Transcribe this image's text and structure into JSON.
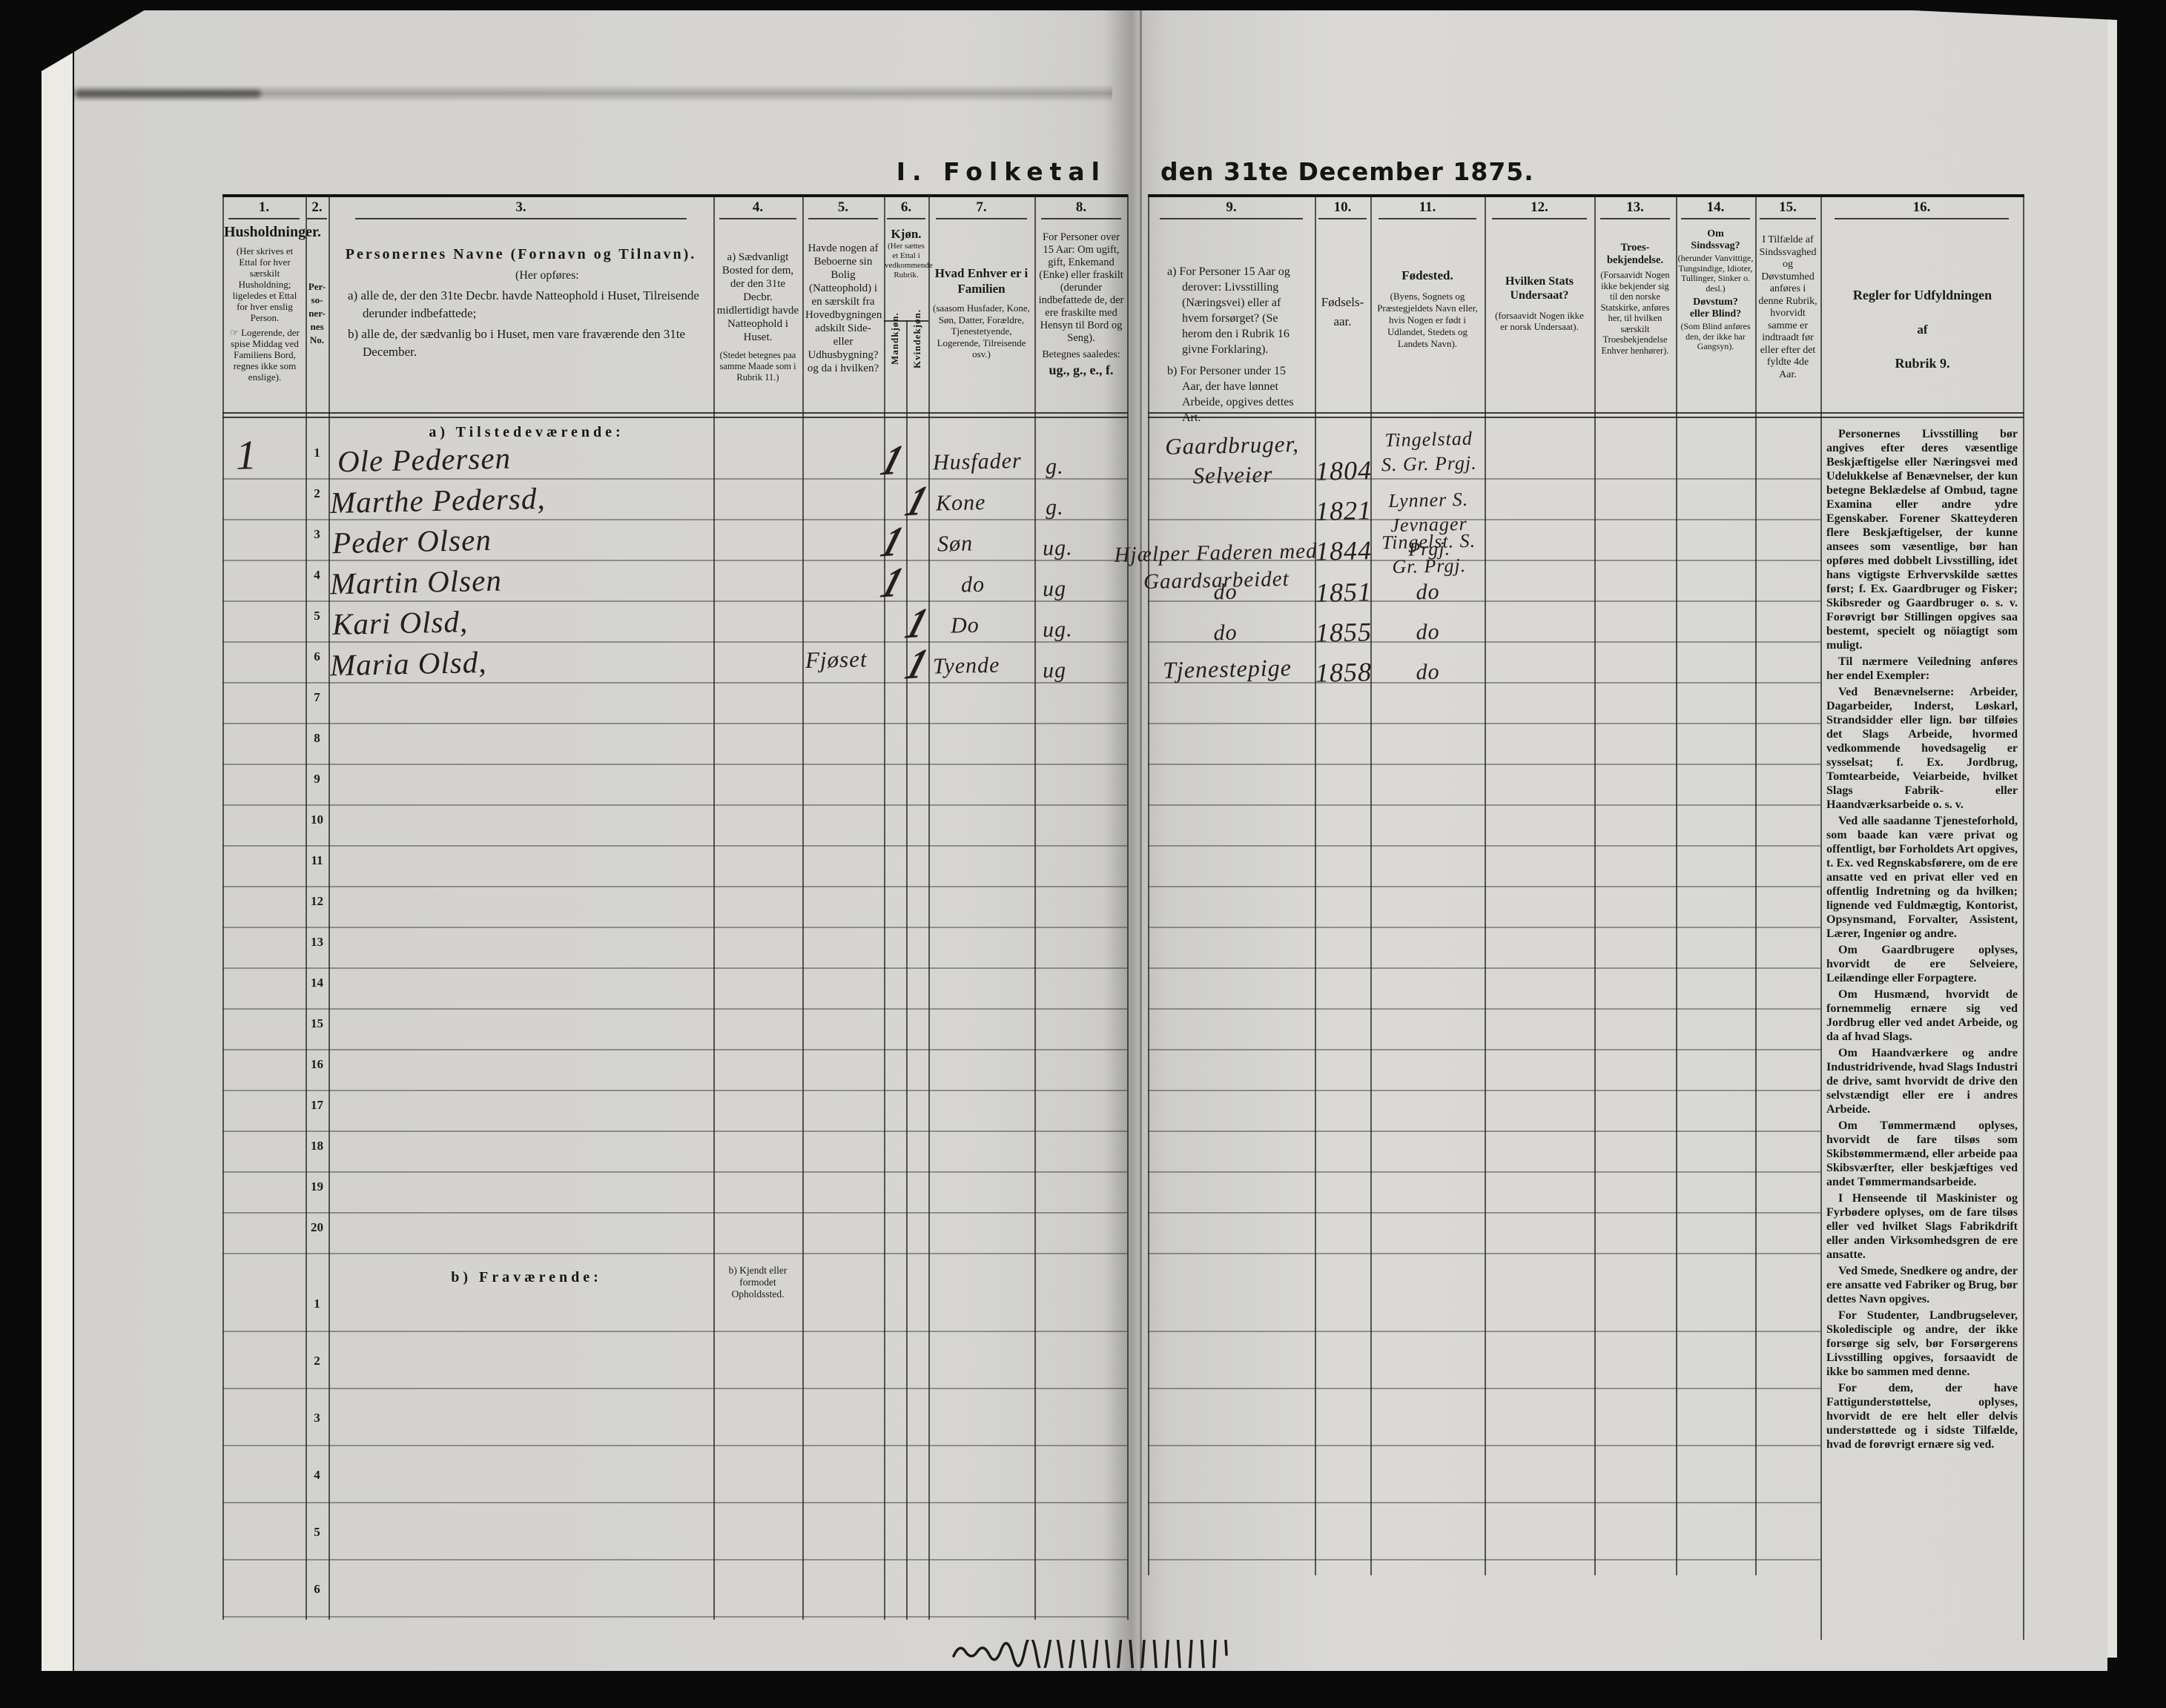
{
  "header": {
    "title_left": "I. Folketal",
    "title_right": "den 31te December 1875."
  },
  "col_numbers": [
    "1.",
    "2.",
    "3.",
    "4.",
    "5.",
    "6.",
    "7.",
    "8.",
    "9.",
    "10.",
    "11.",
    "12.",
    "13.",
    "14.",
    "15.",
    "16."
  ],
  "columns": {
    "c1": {
      "title": "Husholdninger.",
      "note1": "(Her skrives et Ettal for hver særskilt Husholdning; ligeledes et Ettal for hver enslig Person.",
      "note2": "☞ Logerende, der spise Middag ved Familiens Bord, regnes ikke som enslige)."
    },
    "c2": {
      "title": "Per-\nso-\nner-\nnes\nNo."
    },
    "c3": {
      "title": "Personernes Navne (Fornavn og Tilnavn).",
      "sub": "(Her opføres:",
      "a": "a) alle de, der den 31te Decbr. havde Natteophold i Huset, Tilreisende derunder indbefattede;",
      "b": "b) alle de, der sædvanlig bo i Huset, men vare fraværende den 31te December."
    },
    "c4": {
      "a": "a) Sædvanligt Bosted for dem, der den 31te Decbr. midlertidigt havde Natteophold i Huset.",
      "note": "(Stedet betegnes paa samme Maade som i Rubrik 11.)",
      "b": "b) Kjendt eller\nformodet\nOpholdssted."
    },
    "c5": {
      "text": "Havde nogen af Beboerne sin Bolig (Natteophold) i en særskilt fra Hovedbygningen adskilt Side- eller Udhusbygning? og da i hvilken?"
    },
    "c6": {
      "title": "Kjøn.",
      "note": "(Her sættes et Ettal i vedkommende Rubrik.",
      "male": "Mandkjøn.",
      "female": "Kvindekjøn."
    },
    "c7": {
      "title": "Hvad Enhver er i Familien",
      "note": "(saasom Husfader, Kone, Søn, Datter, Forældre, Tjenestetyende, Logerende, Tilreisende osv.)"
    },
    "c8": {
      "text": "For Personer over 15 Aar: Om ugift, gift, Enkemand (Enke) eller fraskilt (derunder indbefattede de, der ere fraskilte med Hensyn til Bord og Seng).",
      "note": "Betegnes saaledes:",
      "codes": "ug., g., e., f."
    },
    "c9": {
      "a": "a) For Personer 15 Aar og derover: Livsstilling (Næringsvei) eller af hvem forsørget? (Se herom den i Rubrik 16 givne Forklaring).",
      "b": "b) For Personer under 15 Aar, der have lønnet Arbeide, opgives dettes Art."
    },
    "c10": {
      "title": "Fødsels-\naar."
    },
    "c11": {
      "title": "Fødested.",
      "note": "(Byens, Sognets og Præstegjeldets Navn eller, hvis Nogen er født i Udlandet, Stedets og Landets Navn)."
    },
    "c12": {
      "title": "Hvilken Stats Undersaat?",
      "note": "(forsaavidt Nogen ikke er norsk Undersaat)."
    },
    "c13": {
      "title": "Troes-\nbekjendelse.",
      "note": "(Forsaavidt Nogen ikke bekjender sig til den norske Statskirke, anføres her, til hvilken særskilt Troesbekjendelse Enhver henhører)."
    },
    "c14": {
      "title1": "Om\nSindssvag?",
      "note1": "(herunder Vanvittige, Tungsindige, Idioter, Tullinger, Sinker o. desl.)",
      "title2": "Døvstum?\neller Blind?",
      "note2": "(Som Blind anføres den, der ikke har Gangsyn)."
    },
    "c15": {
      "text": "I Tilfælde af Sindssvaghed og Døvstumhed anføres i denne Rubrik, hvorvidt samme er indtraadt før eller efter det fyldte 4de Aar."
    },
    "c16": {
      "line1": "Regler for Udfyldningen",
      "line2": "af",
      "line3": "Rubrik 9."
    }
  },
  "sections": {
    "present": "a) Tilstedeværende:",
    "absent": "b) Fraværende:"
  },
  "rows": {
    "a_numbers": [
      "1",
      "2",
      "3",
      "4",
      "5",
      "6",
      "7",
      "8",
      "9",
      "10",
      "11",
      "12",
      "13",
      "14",
      "15",
      "16",
      "17",
      "18",
      "19",
      "20"
    ],
    "b_numbers": [
      "1",
      "2",
      "3",
      "4",
      "5",
      "6"
    ]
  },
  "entries": [
    {
      "household": "1",
      "no": "1",
      "name": "Ole Pedersen",
      "male": "1",
      "family": "Husfader",
      "status": "g.",
      "occupation": "Gaardbruger,\nSelveier",
      "birth_year": "1804",
      "birthplace": "Tingelstad\nS. Gr. Prgj."
    },
    {
      "no": "2",
      "name": "Marthe Pedersd,",
      "female": "1",
      "family": "Kone",
      "status": "g.",
      "birth_year": "1821",
      "birthplace": "Lynner S.\nJevnager Prgj."
    },
    {
      "no": "3",
      "name": "Peder Olsen",
      "male": "1",
      "family": "Søn",
      "status": "ug.",
      "occupation": "Hjælper Faderen med\nGaardsarbeidet",
      "birth_year": "1844",
      "birthplace": "Tingelst. S.\nGr. Prgj."
    },
    {
      "no": "4",
      "name": "Martin Olsen",
      "male": "1",
      "family": "do",
      "status": "ug",
      "occupation": "do",
      "birth_year": "1851",
      "birthplace": "do"
    },
    {
      "no": "5",
      "name": "Kari Olsd,",
      "female": "1",
      "family": "Do",
      "status": "ug.",
      "occupation": "do",
      "birth_year": "1855",
      "birthplace": "do"
    },
    {
      "no": "6",
      "name": "Maria Olsd,",
      "outbuilding": "Fjøset",
      "female": "1",
      "family": "Tyende",
      "status": "ug",
      "occupation": "Tjenestepige",
      "birth_year": "1858",
      "birthplace": "do"
    }
  ],
  "rules": {
    "p1": "Personernes Livsstilling bør angives efter deres væsentlige Beskjæftigelse eller Næringsvei med Udelukkelse af Benævnelser, der kun betegne Beklædelse af Ombud, tagne Examina eller andre ydre Egenskaber. Forener Skatteyderen flere Beskjæftigelser, der kunne ansees som væsentlige, bør han opføres med dobbelt Livsstilling, idet hans vigtigste Erhvervskilde sættes først; f. Ex. Gaardbruger og Fisker; Skibsreder og Gaardbruger o. s. v. Forøvrigt bør Stillingen opgives saa bestemt, specielt og nöiagtigt som muligt.",
    "p2": "Til nærmere Veiledning anføres her endel Exempler:",
    "p3": "Ved Benævnelserne: Arbeider, Dagarbeider, Inderst, Løskarl, Strandsidder eller lign. bør tilføies det Slags Arbeide, hvormed vedkommende hovedsagelig er sysselsat; f. Ex. Jordbrug, Tomtearbeide, Veiarbeide, hvilket Slags Fabrik- eller Haandværksarbeide o. s. v.",
    "p4": "Ved alle saadanne Tjenesteforhold, som baade kan være privat og offentligt, bør Forholdets Art opgives, t. Ex. ved Regnskabsførere, om de ere ansatte ved en privat eller ved en offentlig Indretning og da hvilken; lignende ved Fuldmægtig, Kontorist, Opsynsmand, Forvalter, Assistent, Lærer, Ingeniør og andre.",
    "p5": "Om Gaardbrugere oplyses, hvorvidt de ere Selveiere, Leilændinge eller Forpagtere.",
    "p6": "Om Husmænd, hvorvidt de fornemmelig ernære sig ved Jordbrug eller ved andet Arbeide, og da af hvad Slags.",
    "p7": "Om Haandværkere og andre Industridrivende, hvad Slags Industri de drive, samt hvorvidt de drive den selvstændigt eller ere i andres Arbeide.",
    "p8": "Om Tømmermænd oplyses, hvorvidt de fare tilsøs som Skibstømmermænd, eller arbeide paa Skibsværfter, eller beskjæftiges ved andet Tømmermandsarbeide.",
    "p9": "I Henseende til Maskinister og Fyrbødere oplyses, om de fare tilsøs eller ved hvilket Slags Fabrikdrift eller anden Virksomhedsgren de ere ansatte.",
    "p10": "Ved Smede, Snedkere og andre, der ere ansatte ved Fabriker og Brug, bør dettes Navn opgives.",
    "p11": "For Studenter, Landbrugselever, Skoledisciple og andre, der ikke forsørge sig selv, bør Forsørgerens Livsstilling opgives, forsaavidt de ikke bo sammen med denne.",
    "p12": "For dem, der have Fattigunderstøttelse, oplyses, hvorvidt de ere helt eller delvis understøttede og i sidste Tilfælde, hvad de forøvrigt ernære sig ved."
  }
}
